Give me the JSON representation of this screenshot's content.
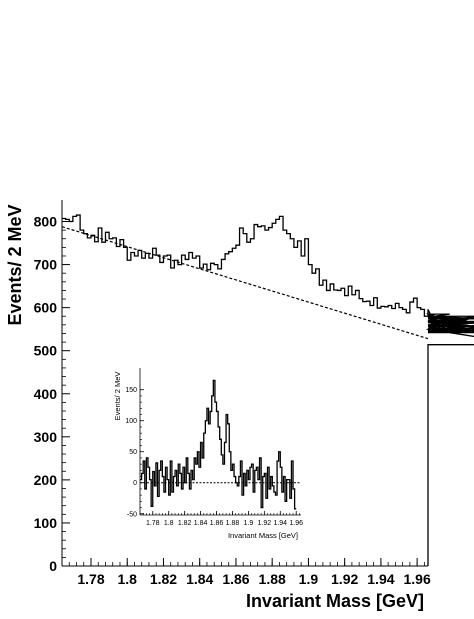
{
  "chart_data": [
    {
      "id": "main",
      "type": "line",
      "style": "histogram-step",
      "xlabel": "Invariant Mass [GeV]",
      "ylabel": "Events/ 2 MeV",
      "xlim": [
        1.764,
        1.966
      ],
      "ylim": [
        0,
        850
      ],
      "x_ticks": [
        1.78,
        1.8,
        1.82,
        1.84,
        1.86,
        1.88,
        1.9,
        1.92,
        1.94,
        1.96
      ],
      "x_tick_labels": [
        "1.78",
        "1.8",
        "1.82",
        "1.84",
        "1.86",
        "1.88",
        "1.9",
        "1.92",
        "1.94",
        "1.96"
      ],
      "y_ticks": [
        0,
        100,
        200,
        300,
        400,
        500,
        600,
        700,
        800
      ],
      "y_tick_labels": [
        "0",
        "100",
        "200",
        "300",
        "400",
        "500",
        "600",
        "700",
        "800"
      ],
      "grid": false,
      "series": [
        {
          "kind": "histogram",
          "bin_width": 0.002,
          "x_start": 1.764,
          "values": [
            807,
            805,
            800,
            812,
            815,
            780,
            772,
            762,
            768,
            753,
            785,
            752,
            775,
            760,
            762,
            742,
            758,
            740,
            710,
            728,
            720,
            733,
            715,
            726,
            715,
            738,
            722,
            705,
            720,
            722,
            692,
            710,
            700,
            722,
            712,
            728,
            715,
            720,
            692,
            701,
            688,
            703,
            700,
            690,
            712,
            725,
            730,
            738,
            745,
            785,
            772,
            752,
            760,
            793,
            788,
            790,
            780,
            786,
            796,
            805,
            812,
            780,
            772,
            760,
            740,
            755,
            720,
            760,
            700,
            680,
            690,
            652,
            664,
            640,
            655,
            641,
            640,
            645,
            628,
            650,
            630,
            640,
            621,
            614,
            615,
            605,
            623,
            599,
            603,
            602,
            605,
            598,
            610,
            600,
            596,
            588,
            613,
            622,
            600,
            596,
            580,
            596,
            578,
            585,
            568,
            550,
            578,
            585,
            560,
            570,
            545,
            556,
            542,
            576,
            566,
            580,
            574,
            552,
            543,
            565,
            580,
            558,
            568,
            548,
            567,
            543,
            542,
            550,
            514
          ]
        },
        {
          "kind": "fit",
          "style": "dashed",
          "x": [
            1.764,
            1.966
          ],
          "y": [
            788,
            528
          ]
        }
      ]
    },
    {
      "id": "inset",
      "type": "line",
      "style": "histogram-step",
      "xlabel": "Invariant Mass [GeV]",
      "ylabel": "Events/ 2 MeV",
      "xlim": [
        1.764,
        1.966
      ],
      "ylim": [
        -52,
        185
      ],
      "x_ticks": [
        1.78,
        1.8,
        1.82,
        1.84,
        1.86,
        1.88,
        1.9,
        1.92,
        1.94,
        1.96
      ],
      "x_tick_labels": [
        "1.78",
        "1.8",
        "1.82",
        "1.84",
        "1.86",
        "1.88",
        "1.9",
        "1.92",
        "1.94",
        "1.96"
      ],
      "y_ticks": [
        -50,
        0,
        50,
        100,
        150
      ],
      "y_tick_labels": [
        "-50",
        "0",
        "50",
        "100",
        "150"
      ],
      "grid": false,
      "series": [
        {
          "kind": "histogram",
          "bin_width": 0.002,
          "x_start": 1.764,
          "values": [
            5,
            15,
            35,
            -10,
            40,
            25,
            5,
            -38,
            18,
            -5,
            32,
            -22,
            20,
            35,
            10,
            -15,
            25,
            5,
            -20,
            35,
            -15,
            10,
            20,
            -5,
            30,
            15,
            -10,
            25,
            0,
            40,
            15,
            -10,
            20,
            5,
            40,
            30,
            50,
            25,
            65,
            40,
            80,
            100,
            120,
            95,
            115,
            140,
            165,
            130,
            115,
            90,
            70,
            45,
            30,
            65,
            110,
            95,
            50,
            20,
            30,
            10,
            0,
            -5,
            10,
            35,
            -20,
            15,
            -5,
            20,
            5,
            25,
            30,
            -15,
            20,
            25,
            5,
            40,
            -40,
            10,
            15,
            -25,
            25,
            -10,
            10,
            -5,
            -15,
            -20,
            35,
            50,
            25,
            -15,
            10,
            -30,
            5,
            5,
            -25,
            35,
            -10,
            -42
          ]
        },
        {
          "kind": "fit",
          "style": "dashed",
          "x": [
            1.764,
            1.966
          ],
          "y": [
            0,
            0
          ]
        }
      ]
    }
  ]
}
